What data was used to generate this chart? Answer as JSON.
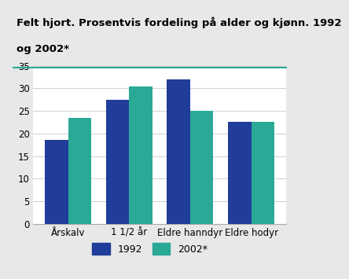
{
  "title_line1": "Felt hjort. Prosentvis fordeling på alder og kjønn. 1992",
  "title_line2": "og 2002*",
  "categories": [
    "Årskalv",
    "1 1/2 år",
    "Eldre hanndyr",
    "Eldre hodyr"
  ],
  "values_1992": [
    18.5,
    27.5,
    32.0,
    22.5
  ],
  "values_2002": [
    23.5,
    30.5,
    25.0,
    22.5
  ],
  "color_1992": "#1f3d99",
  "color_2002": "#2aaa96",
  "ylim": [
    0,
    35
  ],
  "yticks": [
    0,
    5,
    10,
    15,
    20,
    25,
    30,
    35
  ],
  "legend_labels": [
    "1992",
    "2002*"
  ],
  "title_fontsize": 9.5,
  "tick_fontsize": 8.5,
  "legend_fontsize": 9,
  "figure_background": "#e8e8e8",
  "plot_background": "#ffffff",
  "title_background": "#ffffff",
  "title_line_color": "#2aaa96",
  "grid_color": "#d0d0d0"
}
